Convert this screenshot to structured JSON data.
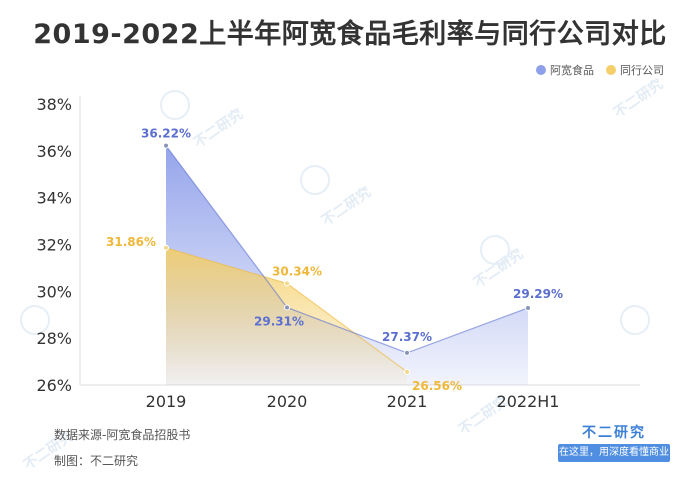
{
  "title": "2019-2022上半年阿宽食品毛利率与同行公司对比",
  "watermark_text": "不二研究",
  "source_text": "数据来源-阿宽食品招股书",
  "made_by_text": "制图：不二研究",
  "brand": {
    "name": "不二研究",
    "tagline": "在这里，用深度看懂商业"
  },
  "colors": {
    "series_blue": "#5b6fd0",
    "series_blue_fill": "#8fa0ea",
    "series_yellow": "#efb83a",
    "series_yellow_fill": "#f4cf6a",
    "axis": "#dddddd",
    "axis_text": "#333333"
  },
  "chart_data": {
    "type": "area",
    "categories": [
      "2019",
      "2020",
      "2021",
      "2022H1"
    ],
    "yticks": [
      "26%",
      "28%",
      "30%",
      "32%",
      "34%",
      "36%",
      "38%"
    ],
    "ylim": [
      26,
      38
    ],
    "grid": false,
    "legend_position": "top-right",
    "series": [
      {
        "name": "阿宽食品",
        "values": [
          36.22,
          29.31,
          27.37,
          29.29
        ],
        "labels": [
          "36.22%",
          "29.31%",
          "27.37%",
          "29.29%"
        ]
      },
      {
        "name": "同行公司",
        "values": [
          31.86,
          30.34,
          26.56,
          null
        ],
        "labels": [
          "31.86%",
          "30.34%",
          "26.56%",
          ""
        ]
      }
    ]
  }
}
